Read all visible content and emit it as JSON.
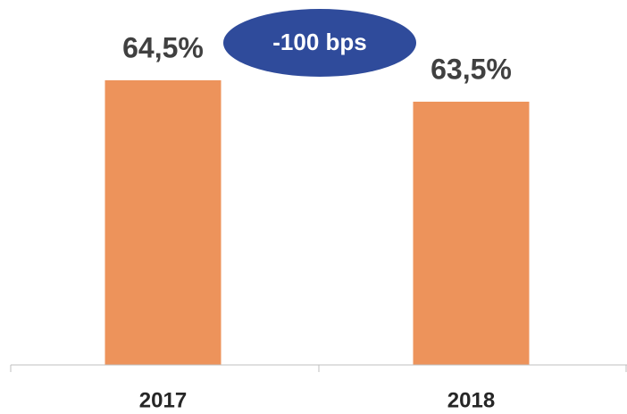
{
  "chart_data": {
    "type": "bar",
    "categories": [
      "2017",
      "2018"
    ],
    "values": [
      64.5,
      63.5
    ],
    "value_labels": [
      "64,5%",
      "63,5%"
    ],
    "color": "#ed935b",
    "ylim": [
      51.2,
      66
    ],
    "annotation": "-100 bps"
  }
}
